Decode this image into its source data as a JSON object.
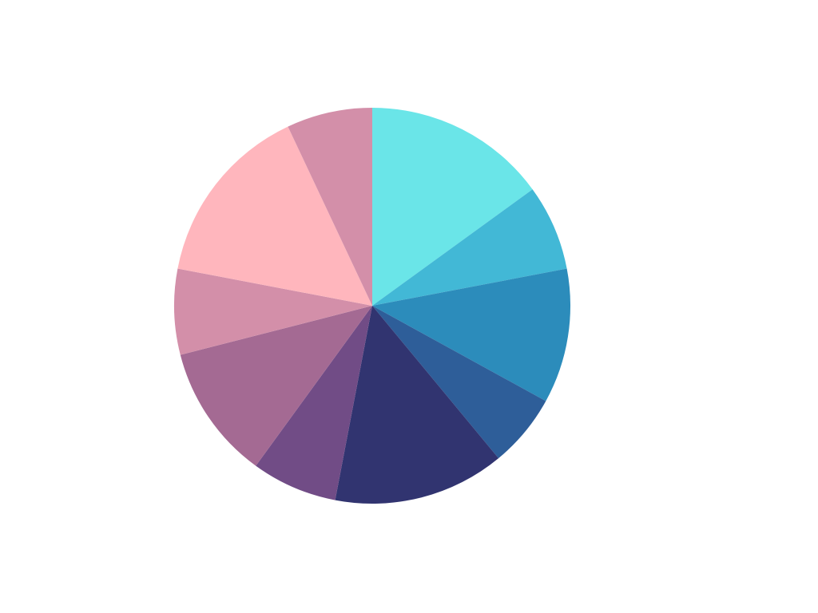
{
  "chart_data": {
    "type": "pie",
    "values": [
      15,
      7,
      11,
      6,
      14,
      7,
      11,
      7,
      15,
      7
    ],
    "colors": [
      "#6ae5e8",
      "#42b8d6",
      "#2c8cbb",
      "#2e5e99",
      "#313470",
      "#714c86",
      "#a46a93",
      "#d38fa9",
      "#ffb6bd",
      "#d38fa9"
    ]
  }
}
